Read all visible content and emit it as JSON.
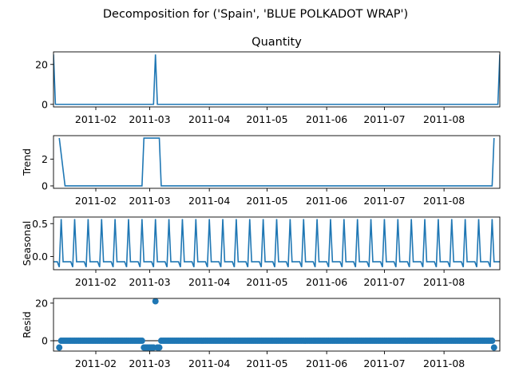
{
  "figure": {
    "suptitle": "Decomposition for ('Spain', 'BLUE POLKADOT WRAP')",
    "colors": {
      "line": "#1f77b4",
      "axis": "#000000",
      "background": "#ffffff"
    }
  },
  "chart_data": [
    {
      "type": "line",
      "title": "Quantity",
      "ylabel": "",
      "x_range": [
        "2011-01-10",
        "2011-08-30"
      ],
      "ylim": [
        -1.3,
        26.3
      ],
      "yticks": [
        0,
        20
      ],
      "xticks": [
        "2011-02",
        "2011-03",
        "2011-04",
        "2011-05",
        "2011-06",
        "2011-07",
        "2011-08"
      ],
      "series": [
        {
          "x": [
            "2011-01-10",
            "2011-01-11",
            "2011-03-03",
            "2011-03-04",
            "2011-03-05",
            "2011-08-29",
            "2011-08-30"
          ],
          "y": [
            25,
            0,
            0,
            25,
            0,
            0,
            25
          ]
        }
      ]
    },
    {
      "type": "line",
      "title": "",
      "ylabel": "Trend",
      "x_range": [
        "2011-01-10",
        "2011-08-30"
      ],
      "ylim": [
        -0.18,
        3.75
      ],
      "yticks": [
        0,
        2
      ],
      "xticks": [
        "2011-02",
        "2011-03",
        "2011-04",
        "2011-05",
        "2011-06",
        "2011-07",
        "2011-08"
      ],
      "series": [
        {
          "x": [
            "2011-01-13",
            "2011-01-16",
            "2011-02-25",
            "2011-02-26",
            "2011-03-06",
            "2011-03-07",
            "2011-08-26",
            "2011-08-27"
          ],
          "y": [
            3.57,
            0,
            0,
            3.57,
            3.57,
            0,
            0,
            3.57
          ]
        }
      ]
    },
    {
      "type": "line",
      "title": "",
      "ylabel": "Seasonal",
      "x_range": [
        "2011-01-10",
        "2011-08-30"
      ],
      "ylim": [
        -0.2,
        0.6
      ],
      "yticks": [
        0.0,
        0.5
      ],
      "xticks": [
        "2011-02",
        "2011-03",
        "2011-04",
        "2011-05",
        "2011-06",
        "2011-07",
        "2011-08"
      ],
      "series": [
        {
          "period_days": 7,
          "weekly_pattern": [
            -0.08,
            -0.08,
            -0.08,
            -0.16,
            0.57,
            -0.08,
            -0.08
          ]
        }
      ]
    },
    {
      "type": "scatter",
      "title": "",
      "ylabel": "Resid",
      "x_range": [
        "2011-01-10",
        "2011-08-30"
      ],
      "ylim": [
        -5.5,
        22.5
      ],
      "yticks": [
        0,
        20
      ],
      "xticks": [
        "2011-02",
        "2011-03",
        "2011-04",
        "2011-05",
        "2011-06",
        "2011-07",
        "2011-08"
      ],
      "zero_line": true,
      "series": [
        {
          "default": 0,
          "marked": [
            {
              "x": "2011-01-13",
              "y": -3.6
            },
            {
              "x": "2011-02-26",
              "y": -3.6
            },
            {
              "x": "2011-02-27",
              "y": -3.6
            },
            {
              "x": "2011-02-28",
              "y": -3.6
            },
            {
              "x": "2011-03-01",
              "y": -3.6
            },
            {
              "x": "2011-03-02",
              "y": -3.6
            },
            {
              "x": "2011-03-03",
              "y": -3.6
            },
            {
              "x": "2011-03-04",
              "y": 21
            },
            {
              "x": "2011-03-05",
              "y": -3.6
            },
            {
              "x": "2011-03-06",
              "y": -3.6
            },
            {
              "x": "2011-08-27",
              "y": -3.6
            }
          ],
          "x_start": "2011-01-13",
          "x_end": "2011-08-27"
        }
      ]
    }
  ]
}
